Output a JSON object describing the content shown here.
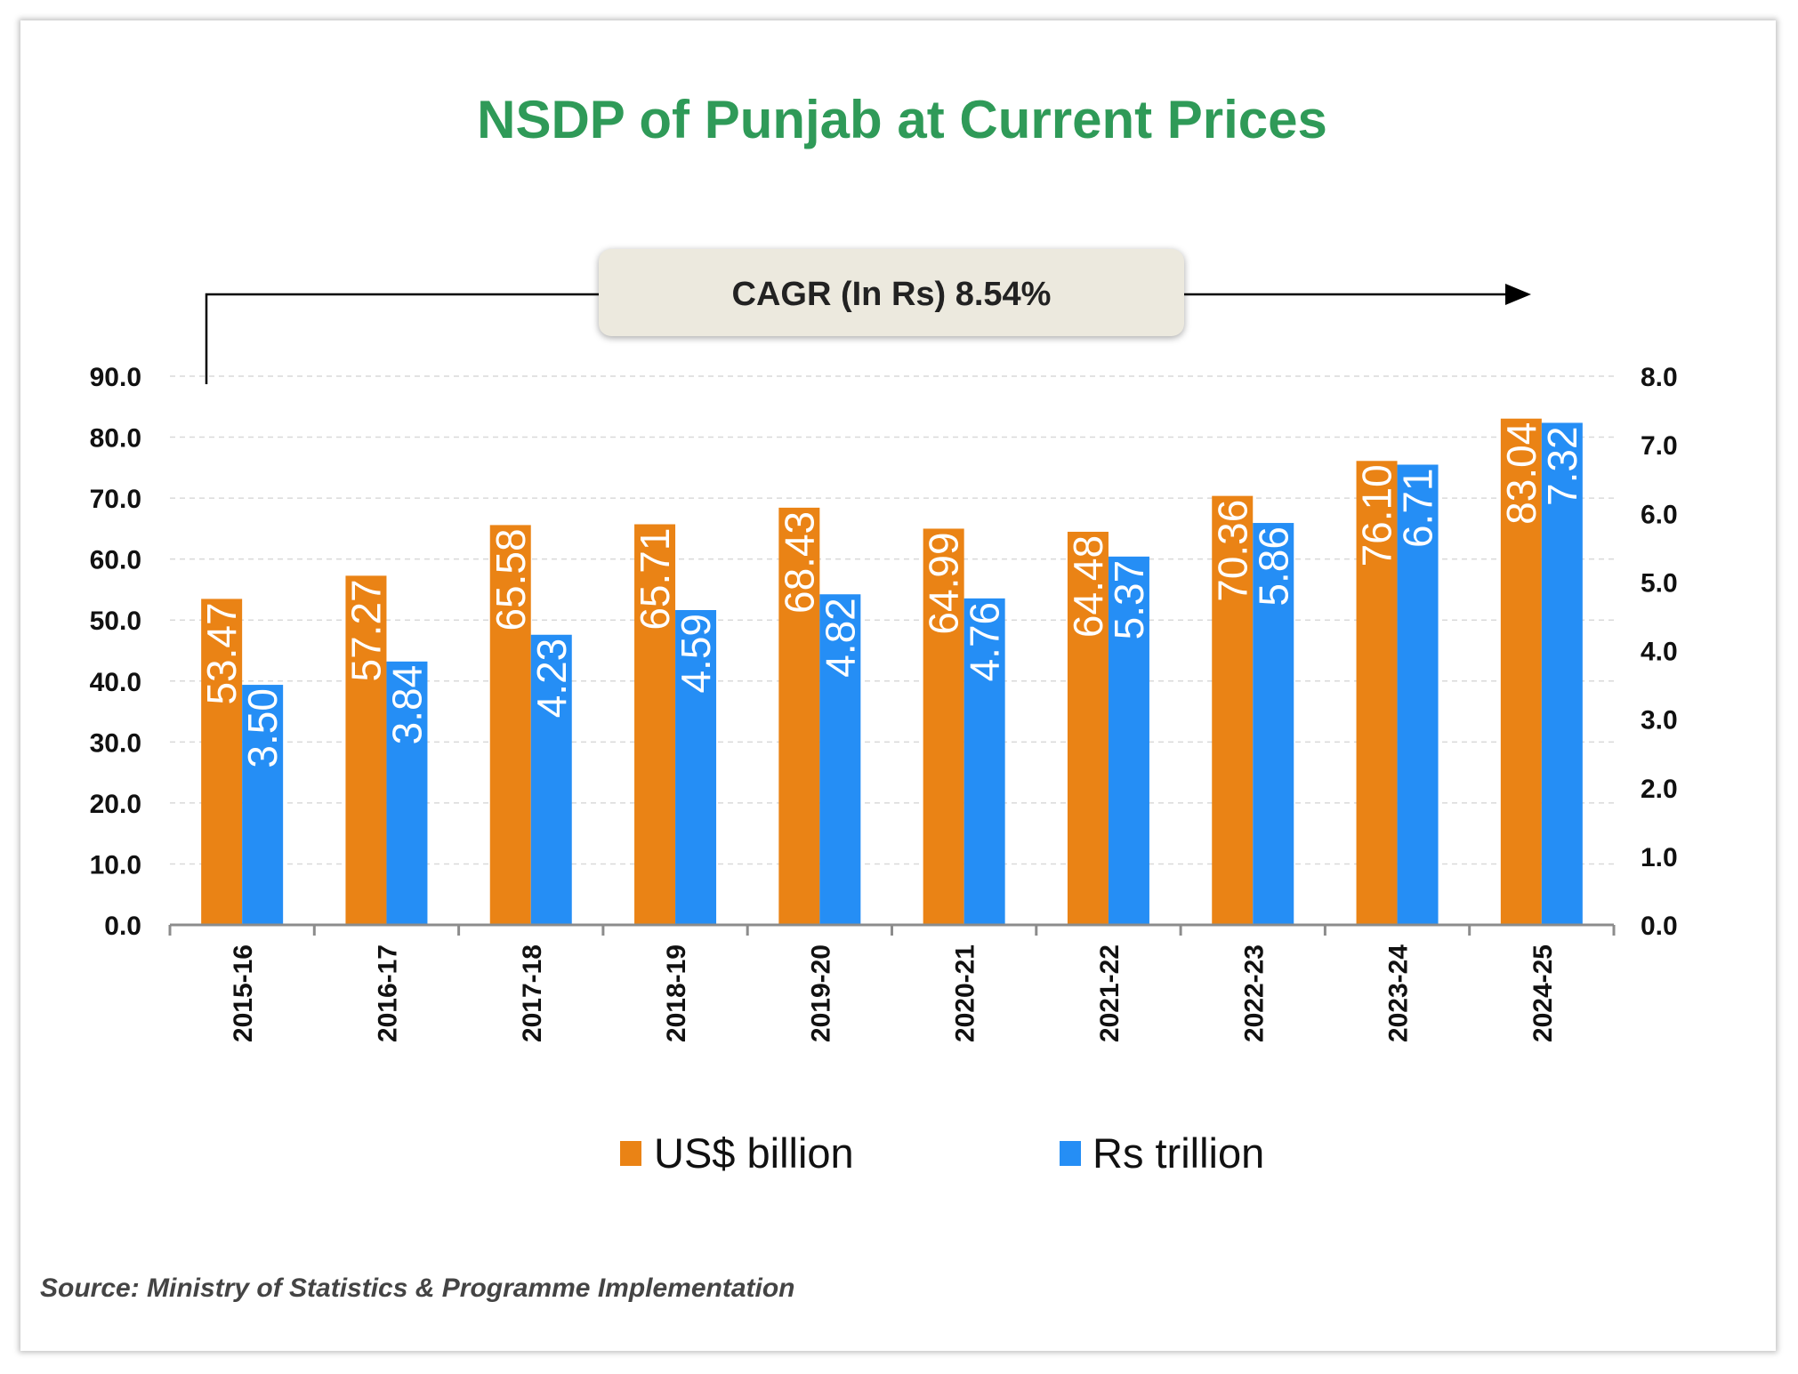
{
  "chart_data": {
    "type": "bar",
    "title": "NSDP of Punjab at Current Prices",
    "categories": [
      "2015-16",
      "2016-17",
      "2017-18",
      "2018-19",
      "2019-20",
      "2020-21",
      "2021-22",
      "2022-23",
      "2023-24",
      "2024-25"
    ],
    "series": [
      {
        "name": "US$ billion",
        "axis": "left",
        "color": "#ea8315",
        "values": [
          53.47,
          57.27,
          65.58,
          65.71,
          68.43,
          64.99,
          64.48,
          70.36,
          76.1,
          83.04
        ],
        "labels": [
          "53.47",
          "57.27",
          "65.58",
          "65.71",
          "68.43",
          "64.99",
          "64.48",
          "70.36",
          "76.10",
          "83.04"
        ]
      },
      {
        "name": "Rs trillion",
        "axis": "right",
        "color": "#258ef5",
        "values": [
          3.5,
          3.84,
          4.23,
          4.59,
          4.82,
          4.76,
          5.37,
          5.86,
          6.71,
          7.32
        ],
        "labels": [
          "3.50",
          "3.84",
          "4.23",
          "4.59",
          "4.82",
          "4.76",
          "5.37",
          "5.86",
          "6.71",
          "7.32"
        ]
      }
    ],
    "y_left": {
      "lim": [
        0,
        90
      ],
      "ticks": [
        "0.0",
        "10.0",
        "20.0",
        "30.0",
        "40.0",
        "50.0",
        "60.0",
        "70.0",
        "80.0",
        "90.0"
      ]
    },
    "y_right": {
      "lim": [
        0,
        8
      ],
      "ticks": [
        "0.0",
        "1.0",
        "2.0",
        "3.0",
        "4.0",
        "5.0",
        "6.0",
        "7.0",
        "8.0"
      ]
    },
    "grid": "horizontal dashed",
    "legend": "bottom",
    "annotation": "CAGR (In Rs) 8.54%"
  },
  "source": "Source: Ministry of Statistics & Programme Implementation"
}
